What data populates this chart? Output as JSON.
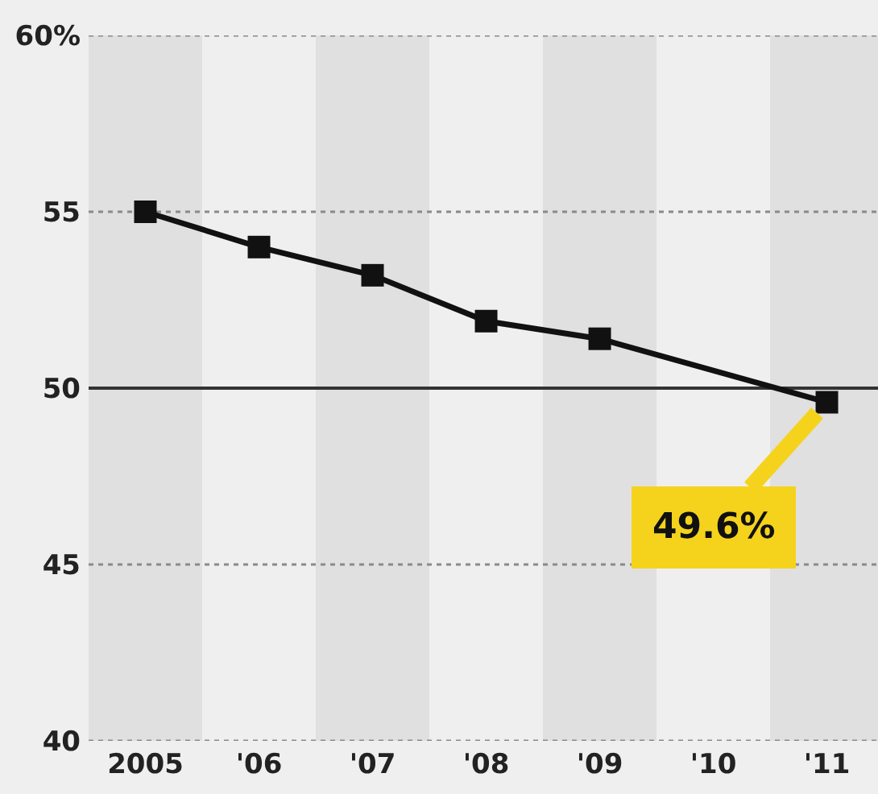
{
  "chart_data": {
    "type": "line",
    "categories": [
      "2005",
      "'06",
      "'07",
      "'08",
      "'09",
      "'10",
      "'11"
    ],
    "series": [
      {
        "color": "#111111",
        "values": [
          55.0,
          54.0,
          53.2,
          51.9,
          51.4,
          null,
          49.6
        ]
      }
    ],
    "ylim": [
      40,
      60
    ],
    "yticks": [
      40,
      45,
      50,
      55,
      {
        "value": 60,
        "label": "60%"
      }
    ],
    "grid": "y",
    "marker": "square",
    "line_style": "solid",
    "ref_lines": [
      {
        "axis": "y",
        "value": 50,
        "color": "#333333"
      }
    ],
    "bands": [
      {
        "axis": "x",
        "from": "2005",
        "to": "2005",
        "color": "#e0e0e0"
      },
      {
        "axis": "x",
        "from": "'07",
        "to": "'07",
        "color": "#e0e0e0"
      },
      {
        "axis": "x",
        "from": "'09",
        "to": "'09",
        "color": "#e0e0e0"
      },
      {
        "axis": "x",
        "from": "'11",
        "to": "'11",
        "color": "#e0e0e0"
      }
    ],
    "annotations": [
      {
        "text": "49.6%",
        "x": "'11",
        "y": 49.6
      }
    ]
  }
}
